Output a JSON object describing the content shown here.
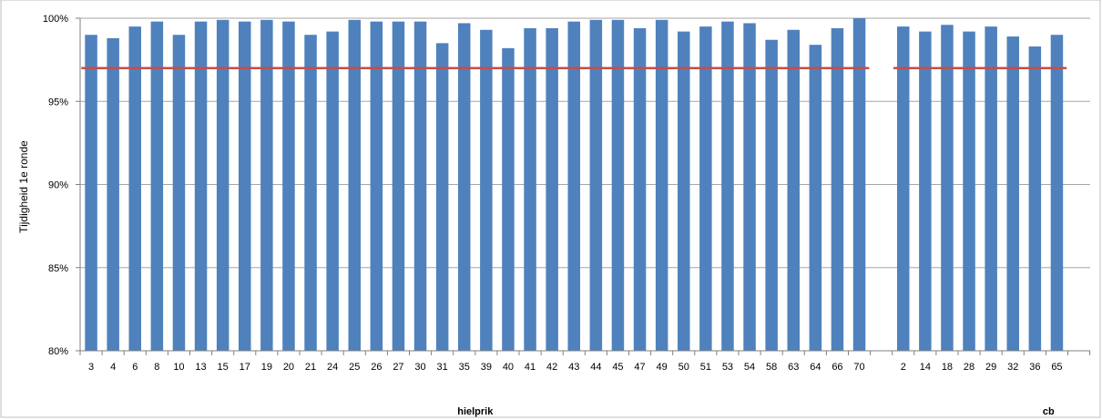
{
  "chart_data": {
    "type": "bar",
    "ylabel": "Tijdigheid 1e ronde",
    "ylim": [
      0.8,
      1.0
    ],
    "yticks": [
      0.8,
      0.85,
      0.9,
      0.95,
      1.0
    ],
    "ytick_labels": [
      "80%",
      "85%",
      "90%",
      "95%",
      "100%"
    ],
    "bar_color": "#4f81bd",
    "target_color": "#c0504d",
    "target_value": 0.97,
    "grid": true,
    "groups": [
      {
        "name": "hielprik",
        "categories": [
          "3",
          "4",
          "6",
          "8",
          "10",
          "13",
          "15",
          "17",
          "19",
          "20",
          "21",
          "24",
          "25",
          "26",
          "27",
          "30",
          "31",
          "35",
          "39",
          "40",
          "41",
          "42",
          "43",
          "44",
          "45",
          "47",
          "49",
          "50",
          "51",
          "53",
          "54",
          "58",
          "63",
          "64",
          "66",
          "70"
        ],
        "values": [
          0.99,
          0.988,
          0.995,
          0.998,
          0.99,
          0.998,
          0.999,
          0.998,
          0.999,
          0.998,
          0.99,
          0.992,
          0.999,
          0.998,
          0.998,
          0.998,
          0.985,
          0.997,
          0.993,
          0.982,
          0.994,
          0.994,
          0.998,
          0.999,
          0.999,
          0.994,
          0.999,
          0.992,
          0.995,
          0.998,
          0.997,
          0.987,
          0.993,
          0.984,
          0.994,
          1.0
        ]
      },
      {
        "name": "cb",
        "categories": [
          "2",
          "14",
          "18",
          "28",
          "29",
          "32",
          "36",
          "65"
        ],
        "values": [
          0.995,
          0.992,
          0.996,
          0.992,
          0.995,
          0.989,
          0.983,
          0.99
        ],
        "slots": 13
      }
    ]
  }
}
